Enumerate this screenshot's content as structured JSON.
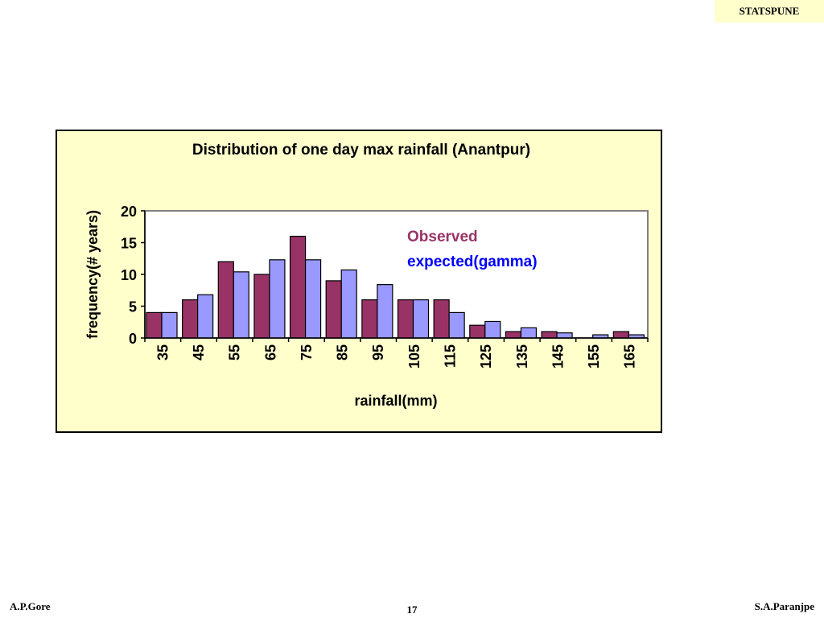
{
  "header": {
    "badge": "STATSPUNE"
  },
  "footer": {
    "left": "A.P.Gore",
    "center": "17",
    "right": "S.A.Paranjpe"
  },
  "colors": {
    "observed": "#993366",
    "expected": "#9999ff",
    "frame_bg": "#ffffcc",
    "plot_bg": "#ffffff"
  },
  "chart_data": {
    "type": "bar",
    "title": "Distribution of one day max rainfall (Anantpur)",
    "xlabel": "rainfall(mm)",
    "ylabel": "frequency(# years)",
    "ylim": [
      0,
      20
    ],
    "yticks": [
      0,
      5,
      10,
      15,
      20
    ],
    "grid": false,
    "legend_placement": "top-right",
    "categories": [
      "35",
      "45",
      "55",
      "65",
      "75",
      "85",
      "95",
      "105",
      "115",
      "125",
      "135",
      "145",
      "155",
      "165"
    ],
    "series": [
      {
        "name": "Observed",
        "color": "#993366",
        "values": [
          4,
          6,
          12,
          10,
          16,
          9,
          6,
          6,
          6,
          2,
          1,
          1,
          0,
          1
        ]
      },
      {
        "name": "expected(gamma)",
        "color": "#9999ff",
        "values": [
          4,
          6.8,
          10.4,
          12.3,
          12.3,
          10.7,
          8.4,
          6,
          4,
          2.6,
          1.6,
          0.8,
          0.5,
          0.5
        ]
      }
    ]
  }
}
